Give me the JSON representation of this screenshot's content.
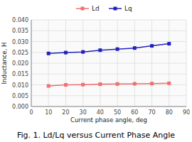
{
  "chart_data": {
    "type": "line",
    "title": "Fig. 1. Ld/Lq versus Current Phase Angle",
    "x_label": "Current phase angle, deg",
    "y_label": "Inductance, H",
    "x": [
      10,
      20,
      30,
      40,
      50,
      60,
      70,
      80
    ],
    "series": [
      {
        "name": "Ld",
        "color": "#f07070",
        "marker": "square",
        "values": [
          0.0095,
          0.01,
          0.0101,
          0.0103,
          0.0104,
          0.0105,
          0.0106,
          0.0107
        ]
      },
      {
        "name": "Lq",
        "color": "#2222bb",
        "marker": "square",
        "values": [
          0.0245,
          0.0249,
          0.0252,
          0.026,
          0.0265,
          0.027,
          0.028,
          0.029
        ]
      }
    ],
    "xlim": [
      0,
      90
    ],
    "ylim": [
      0.0,
      0.04
    ],
    "xticks": [
      0,
      10,
      20,
      30,
      40,
      50,
      60,
      70,
      80,
      90
    ],
    "yticks": [
      {
        "value": 0.0,
        "label": "0.000"
      },
      {
        "value": 0.005,
        "label": "0.005"
      },
      {
        "value": 0.01,
        "label": "0.010"
      },
      {
        "value": 0.015,
        "label": "0.015"
      },
      {
        "value": 0.02,
        "label": "0.020"
      },
      {
        "value": 0.025,
        "label": "0.025"
      },
      {
        "value": 0.03,
        "label": "0.030"
      },
      {
        "value": 0.035,
        "label": "0.035"
      },
      {
        "value": 0.04,
        "label": "0.040"
      }
    ],
    "grid": true,
    "legend": "top"
  }
}
